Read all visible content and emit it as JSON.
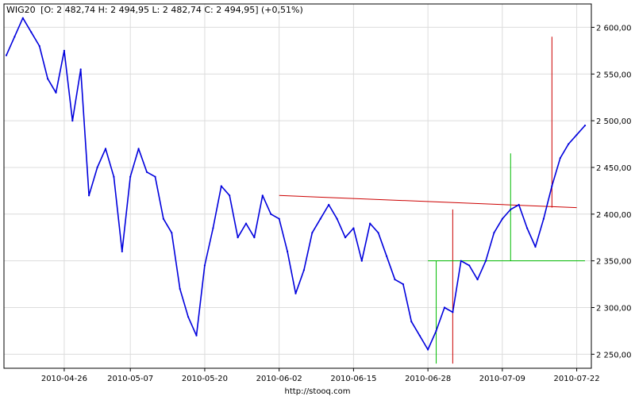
{
  "header": {
    "ticker": "WIG20",
    "ohlc": "[O: 2 482,74  H: 2 494,95  L: 2 482,74  C: 2 494,95] (+0,51%)"
  },
  "footer": {
    "source": "http://stooq.com"
  },
  "colors": {
    "price": "#0000dd",
    "grid": "#dcdcdc",
    "frame": "#000000",
    "resistance": "#cc0000",
    "support": "#00bb00"
  },
  "chart_data": {
    "type": "line",
    "title": "WIG20",
    "xlabel": "",
    "ylabel": "",
    "ylim": [
      2235,
      2625
    ],
    "grid": true,
    "y_ticks": [
      {
        "value": 2250,
        "label": "2 250,00"
      },
      {
        "value": 2300,
        "label": "2 300,00"
      },
      {
        "value": 2350,
        "label": "2 350,00"
      },
      {
        "value": 2400,
        "label": "2 400,00"
      },
      {
        "value": 2450,
        "label": "2 450,00"
      },
      {
        "value": 2500,
        "label": "2 500,00"
      },
      {
        "value": 2550,
        "label": "2 550,00"
      },
      {
        "value": 2600,
        "label": "2 600,00"
      }
    ],
    "x_ticks": [
      "2010-04-26",
      "2010-05-07",
      "2010-05-20",
      "2010-06-02",
      "2010-06-15",
      "2010-06-28",
      "2010-07-09",
      "2010-07-22"
    ],
    "series": [
      {
        "dates": [
          "2010-04-15",
          "2010-04-16",
          "2010-04-19",
          "2010-04-20",
          "2010-04-21",
          "2010-04-22",
          "2010-04-23",
          "2010-04-26",
          "2010-04-27",
          "2010-04-28",
          "2010-04-29",
          "2010-04-30",
          "2010-05-04",
          "2010-05-05",
          "2010-05-06",
          "2010-05-07",
          "2010-05-10",
          "2010-05-11",
          "2010-05-12",
          "2010-05-13",
          "2010-05-14",
          "2010-05-17",
          "2010-05-18",
          "2010-05-19",
          "2010-05-20",
          "2010-05-21",
          "2010-05-24",
          "2010-05-25",
          "2010-05-26",
          "2010-05-27",
          "2010-05-28",
          "2010-05-31",
          "2010-06-01",
          "2010-06-02",
          "2010-06-03",
          "2010-06-04",
          "2010-06-07",
          "2010-06-08",
          "2010-06-09",
          "2010-06-10",
          "2010-06-11",
          "2010-06-14",
          "2010-06-15",
          "2010-06-16",
          "2010-06-17",
          "2010-06-18",
          "2010-06-21",
          "2010-06-22",
          "2010-06-23",
          "2010-06-24",
          "2010-06-25",
          "2010-06-28",
          "2010-06-29",
          "2010-06-30",
          "2010-07-01",
          "2010-07-02",
          "2010-07-05",
          "2010-07-06",
          "2010-07-07",
          "2010-07-08",
          "2010-07-09",
          "2010-07-12",
          "2010-07-13",
          "2010-07-14",
          "2010-07-15",
          "2010-07-16",
          "2010-07-19",
          "2010-07-20",
          "2010-07-21",
          "2010-07-22",
          "2010-07-23"
        ],
        "values": [
          2570,
          2590,
          2610,
          2595,
          2580,
          2545,
          2530,
          2575,
          2500,
          2555,
          2420,
          2450,
          2470,
          2440,
          2360,
          2440,
          2470,
          2445,
          2440,
          2395,
          2380,
          2320,
          2290,
          2270,
          2345,
          2385,
          2430,
          2420,
          2375,
          2390,
          2375,
          2420,
          2400,
          2395,
          2360,
          2315,
          2340,
          2380,
          2395,
          2410,
          2395,
          2375,
          2385,
          2350,
          2390,
          2380,
          2355,
          2330,
          2325,
          2285,
          2270,
          2255,
          2275,
          2300,
          2295,
          2350,
          2345,
          2330,
          2350,
          2380,
          2395,
          2405,
          2410,
          2385,
          2365,
          2395,
          2430,
          2460,
          2475,
          2485,
          2494.95
        ]
      }
    ],
    "annotations": [
      {
        "type": "trendline",
        "color": "resistance",
        "from": [
          "2010-06-02",
          2420
        ],
        "to": [
          "2010-07-22",
          2407
        ]
      },
      {
        "type": "vline",
        "color": "resistance",
        "date": "2010-07-01",
        "y1": 2240,
        "y2": 2405
      },
      {
        "type": "vline",
        "color": "resistance",
        "date": "2010-07-19",
        "y1": 2407,
        "y2": 2590
      },
      {
        "type": "hline",
        "color": "support",
        "from": [
          "2010-06-28",
          2350
        ],
        "to": [
          "2010-07-23",
          2350
        ]
      },
      {
        "type": "vline",
        "color": "support",
        "date": "2010-06-29",
        "y1": 2240,
        "y2": 2350
      },
      {
        "type": "vline",
        "color": "support",
        "date": "2010-07-12",
        "y1": 2350,
        "y2": 2465
      }
    ]
  }
}
